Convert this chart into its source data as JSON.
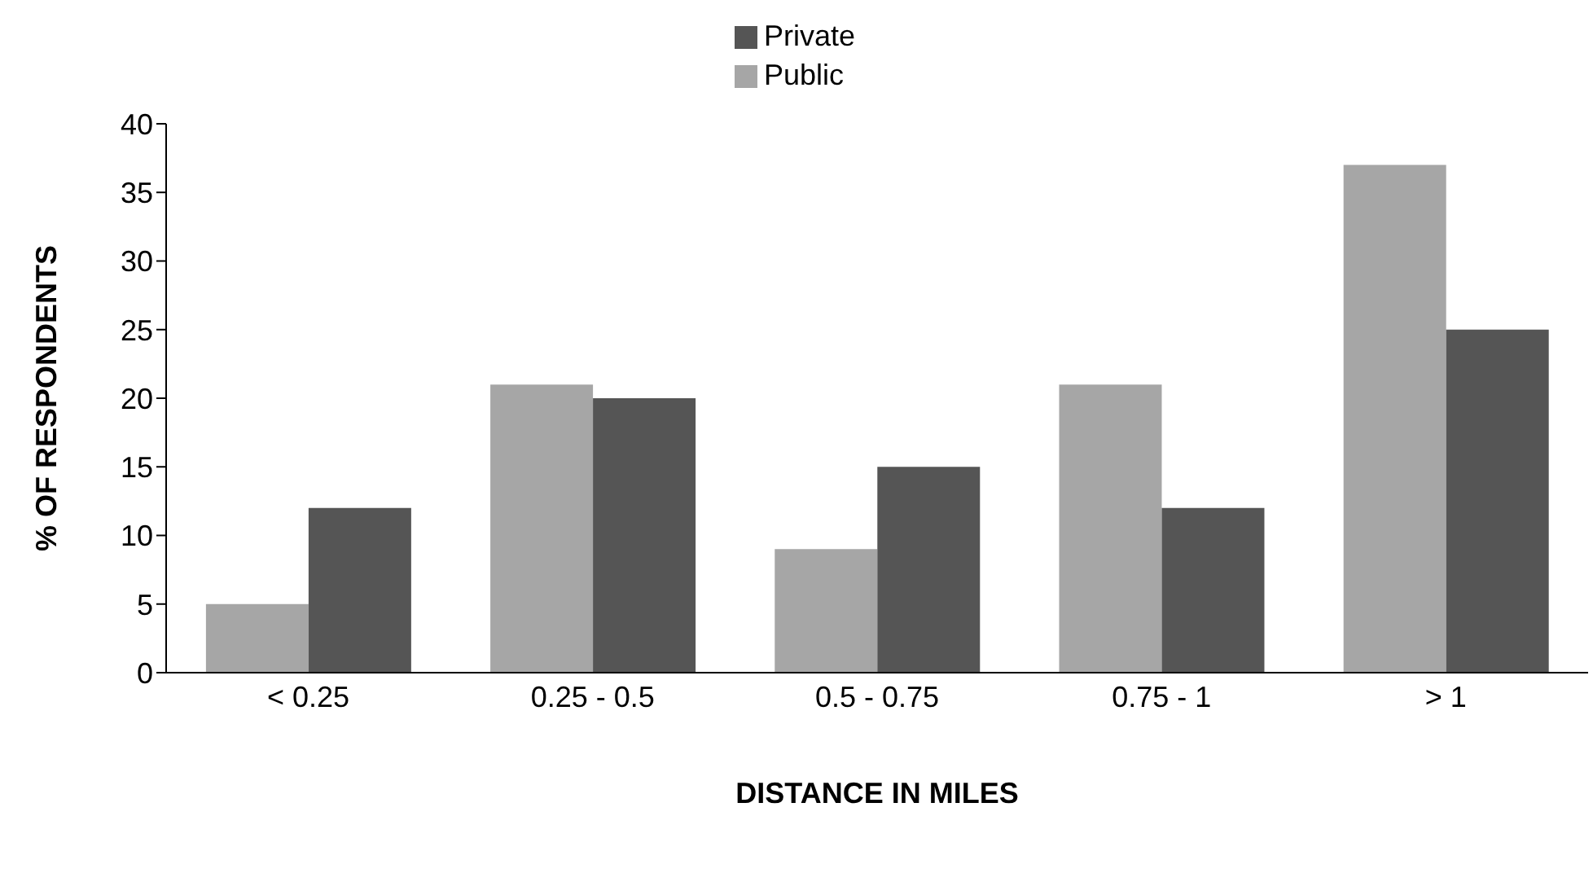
{
  "chart_data": {
    "type": "bar",
    "xlabel": "DISTANCE IN MILES",
    "ylabel": "% OF RESPONDENTS",
    "categories": [
      "< 0.25",
      "0.25 - 0.5",
      "0.5 - 0.75",
      "0.75 - 1",
      "> 1"
    ],
    "series": [
      {
        "name": "Public",
        "color": "#a6a6a6",
        "values": [
          5,
          21,
          9,
          21,
          37
        ]
      },
      {
        "name": "Private",
        "color": "#555555",
        "values": [
          12,
          20,
          15,
          12,
          25
        ]
      }
    ],
    "ylim": [
      0,
      40
    ],
    "yticks": [
      0,
      5,
      10,
      15,
      20,
      25,
      30,
      35,
      40
    ],
    "grid": false,
    "legend": "top"
  }
}
